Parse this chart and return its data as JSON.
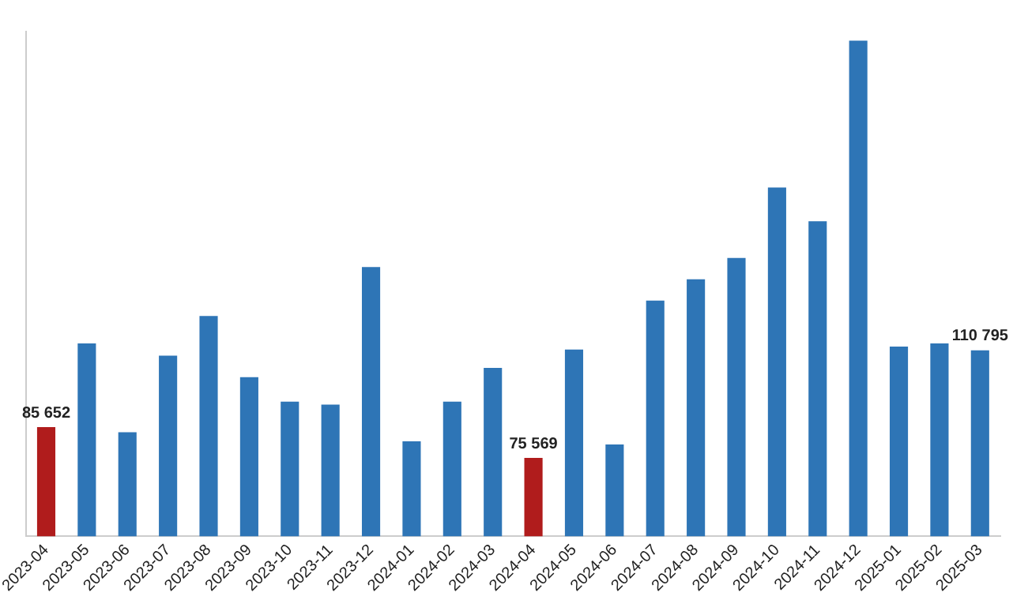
{
  "chart_data": {
    "type": "bar",
    "categories": [
      "2023-04",
      "2023-05",
      "2023-06",
      "2023-07",
      "2023-08",
      "2023-09",
      "2023-10",
      "2023-11",
      "2023-12",
      "2024-01",
      "2024-02",
      "2024-03",
      "2024-04",
      "2024-05",
      "2024-06",
      "2024-07",
      "2024-08",
      "2024-09",
      "2024-10",
      "2024-11",
      "2024-12",
      "2025-01",
      "2025-02",
      "2025-03"
    ],
    "values": [
      85652,
      113000,
      84000,
      109000,
      122000,
      102000,
      94000,
      93000,
      138000,
      81000,
      94000,
      105000,
      75569,
      111000,
      80000,
      127000,
      134000,
      141000,
      164000,
      153000,
      212000,
      112000,
      113000,
      110795
    ],
    "colors": [
      "#b01c1c",
      "#2e75b6",
      "#2e75b6",
      "#2e75b6",
      "#2e75b6",
      "#2e75b6",
      "#2e75b6",
      "#2e75b6",
      "#2e75b6",
      "#2e75b6",
      "#2e75b6",
      "#2e75b6",
      "#b01c1c",
      "#2e75b6",
      "#2e75b6",
      "#2e75b6",
      "#2e75b6",
      "#2e75b6",
      "#2e75b6",
      "#2e75b6",
      "#2e75b6",
      "#2e75b6",
      "#2e75b6",
      "#2e75b6"
    ],
    "value_labels": [
      "85 652",
      null,
      null,
      null,
      null,
      null,
      null,
      null,
      null,
      null,
      null,
      null,
      "75 569",
      null,
      null,
      null,
      null,
      null,
      null,
      null,
      null,
      null,
      null,
      "110 795"
    ],
    "ylim": [
      50000,
      215000
    ],
    "tick_labels": "x",
    "grid": false,
    "legend": false
  }
}
